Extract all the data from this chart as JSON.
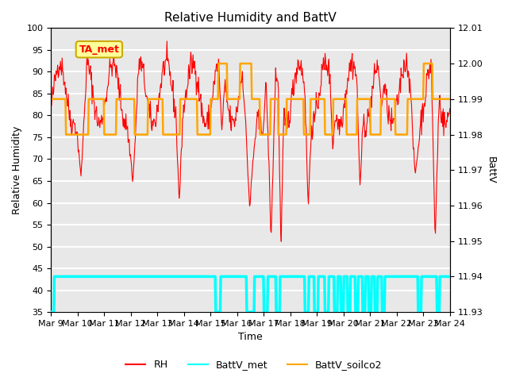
{
  "title": "Relative Humidity and BattV",
  "xlabel": "Time",
  "ylabel_left": "Relative Humidity",
  "ylabel_right": "BattV",
  "ylim_left": [
    35,
    100
  ],
  "ylim_right": [
    11.93,
    12.01
  ],
  "yticks_left": [
    35,
    40,
    45,
    50,
    55,
    60,
    65,
    70,
    75,
    80,
    85,
    90,
    95,
    100
  ],
  "yticks_right": [
    11.93,
    11.94,
    11.95,
    11.96,
    11.97,
    11.98,
    11.99,
    12.0,
    12.01
  ],
  "xtick_labels": [
    "Mar 9",
    "Mar 10",
    "Mar 11",
    "Mar 12",
    "Mar 13",
    "Mar 14",
    "Mar 15",
    "Mar 16",
    "Mar 17",
    "Mar 18",
    "Mar 19",
    "Mar 20",
    "Mar 21",
    "Mar 22",
    "Mar 23",
    "Mar 24"
  ],
  "bg_color": "#ffffff",
  "plot_bg_color": "#e8e8e8",
  "rh_color": "#ff0000",
  "battv_met_color": "#00ffff",
  "battv_soilco2_color": "#ffa500",
  "annotation_text": "TA_met",
  "annotation_color": "#ff0000",
  "annotation_bg": "#ffff99",
  "annotation_edge": "#ccaa00",
  "legend_rh": "RH",
  "legend_battv_met": "BattV_met",
  "legend_battv_soilco2": "BattV_soilco2",
  "battv_soilco2_low": 11.98,
  "battv_soilco2_high": 11.99,
  "battv_soilco2_peak": 12.0,
  "battv_met_high": 11.94,
  "battv_met_low": 11.93
}
